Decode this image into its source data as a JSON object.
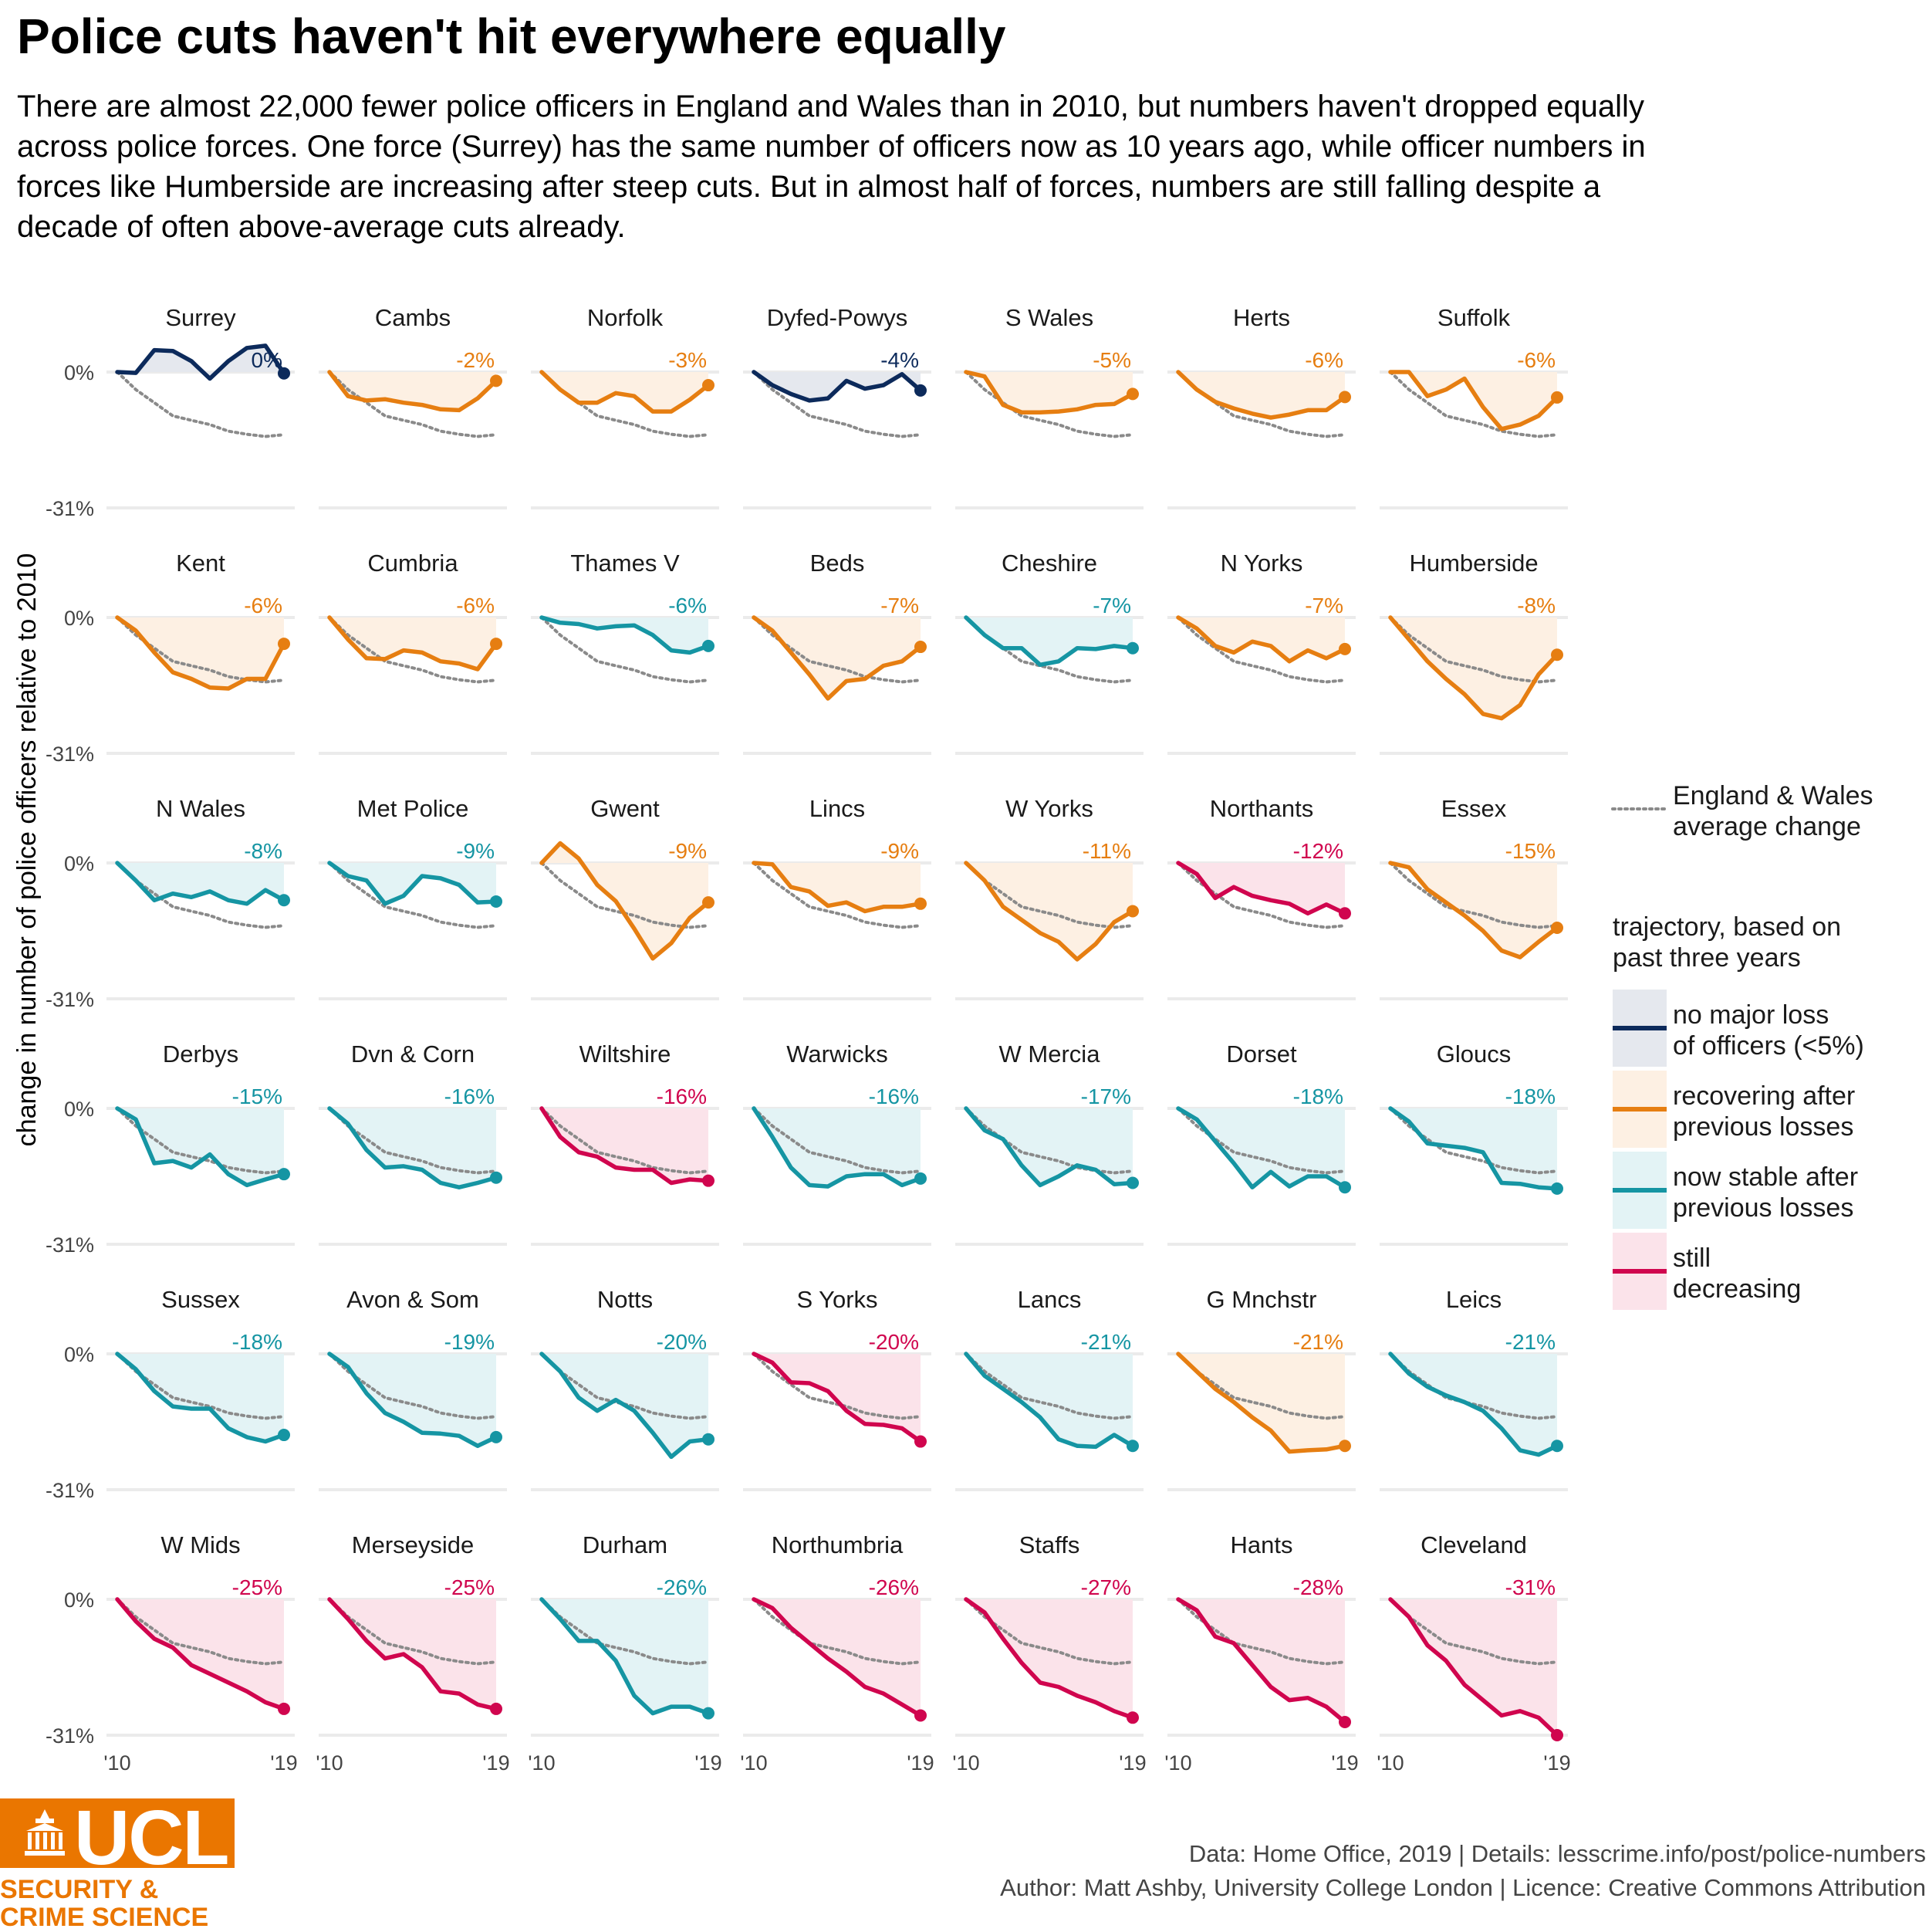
{
  "title": "Police cuts haven't hit everywhere equally",
  "subtitle": "There are almost 22,000 fewer police officers in England and Wales than in 2010, but numbers haven't dropped equally across police forces. One force (Surrey) has the same number of officers now as 10 years ago, while officer numbers in forces like Humberside are increasing after steep cuts. But in almost half of forces, numbers are still falling despite a decade of often above-average cuts already.",
  "caption": {
    "line1": "Data: Home Office, 2019 |  Details: lesscrime.info/post/police-numbers",
    "line2": "Author: Matt Ashby, University College London |  Licence: Creative Commons Attribution"
  },
  "logo": {
    "letters": "UCL",
    "tagline": "SECURITY &\nCRIME SCIENCE"
  },
  "legend": {
    "average_label": [
      "England & Wales",
      "average change"
    ],
    "trajectory_title": [
      "trajectory, based on",
      "past three years"
    ],
    "items": [
      {
        "key": "nochange",
        "label": [
          "no major loss",
          "of officers (<5%)"
        ]
      },
      {
        "key": "recovering",
        "label": [
          "recovering after",
          "previous losses"
        ]
      },
      {
        "key": "stable",
        "label": [
          "now stable after",
          "previous losses"
        ]
      },
      {
        "key": "decreasing",
        "label": [
          "still",
          "decreasing"
        ]
      }
    ]
  },
  "colors": {
    "nochange": {
      "line": "#0c2a5b",
      "fill": "#e5e8ee"
    },
    "recovering": {
      "line": "#e67e11",
      "fill": "#fdf0e3"
    },
    "stable": {
      "line": "#1595a3",
      "fill": "#e3f3f5"
    },
    "decreasing": {
      "line": "#d0054e",
      "fill": "#fbe3ea"
    },
    "average": "#8a8a8a",
    "gridline": "#ebebeb"
  },
  "chart_data": {
    "type": "line",
    "layout": "small-multiples",
    "ylabel": "change in number of police officers relative to 2010",
    "x": [
      2010,
      2011,
      2012,
      2013,
      2014,
      2015,
      2016,
      2017,
      2018,
      2019
    ],
    "x_tick_labels": [
      "'10",
      "'19"
    ],
    "y_tick_labels": [
      "0%",
      "-31%"
    ],
    "ylim": [
      -0.31,
      0.02
    ],
    "average": [
      0,
      -0.04,
      -0.07,
      -0.1,
      -0.11,
      -0.12,
      -0.135,
      -0.142,
      -0.147,
      -0.143
    ],
    "panels": [
      {
        "name": "Surrey",
        "label": "0%",
        "trajectory": "nochange",
        "values": [
          0,
          -0.002,
          0.05,
          0.048,
          0.025,
          -0.015,
          0.025,
          0.055,
          0.06,
          -0.003
        ]
      },
      {
        "name": "Cambs",
        "label": "-2%",
        "trajectory": "recovering",
        "values": [
          0,
          -0.055,
          -0.065,
          -0.062,
          -0.07,
          -0.075,
          -0.085,
          -0.087,
          -0.06,
          -0.02
        ]
      },
      {
        "name": "Norfolk",
        "label": "-3%",
        "trajectory": "recovering",
        "values": [
          0,
          -0.04,
          -0.07,
          -0.07,
          -0.048,
          -0.055,
          -0.09,
          -0.09,
          -0.063,
          -0.03
        ]
      },
      {
        "name": "Dyfed-Powys",
        "label": "-4%",
        "trajectory": "nochange",
        "values": [
          0,
          -0.03,
          -0.05,
          -0.065,
          -0.06,
          -0.02,
          -0.038,
          -0.03,
          -0.005,
          -0.042
        ]
      },
      {
        "name": "S Wales",
        "label": "-5%",
        "trajectory": "recovering",
        "values": [
          0,
          -0.01,
          -0.075,
          -0.092,
          -0.092,
          -0.09,
          -0.085,
          -0.075,
          -0.073,
          -0.05
        ]
      },
      {
        "name": "Herts",
        "label": "-6%",
        "trajectory": "recovering",
        "values": [
          0,
          -0.04,
          -0.068,
          -0.083,
          -0.095,
          -0.104,
          -0.097,
          -0.087,
          -0.087,
          -0.057
        ]
      },
      {
        "name": "Suffolk",
        "label": "-6%",
        "trajectory": "recovering",
        "values": [
          0,
          0,
          -0.055,
          -0.04,
          -0.015,
          -0.08,
          -0.13,
          -0.12,
          -0.1,
          -0.058
        ]
      },
      {
        "name": "Kent",
        "label": "-6%",
        "trajectory": "recovering",
        "values": [
          0,
          -0.03,
          -0.08,
          -0.125,
          -0.14,
          -0.16,
          -0.162,
          -0.14,
          -0.14,
          -0.06
        ]
      },
      {
        "name": "Cumbria",
        "label": "-6%",
        "trajectory": "recovering",
        "values": [
          0,
          -0.05,
          -0.093,
          -0.095,
          -0.075,
          -0.08,
          -0.1,
          -0.105,
          -0.118,
          -0.06
        ]
      },
      {
        "name": "Thames V",
        "label": "-6%",
        "trajectory": "stable",
        "values": [
          0,
          -0.012,
          -0.015,
          -0.025,
          -0.02,
          -0.018,
          -0.04,
          -0.075,
          -0.08,
          -0.065
        ]
      },
      {
        "name": "Beds",
        "label": "-7%",
        "trajectory": "recovering",
        "values": [
          0,
          -0.03,
          -0.08,
          -0.13,
          -0.185,
          -0.145,
          -0.14,
          -0.11,
          -0.1,
          -0.067
        ]
      },
      {
        "name": "Cheshire",
        "label": "-7%",
        "trajectory": "stable",
        "values": [
          0,
          -0.04,
          -0.07,
          -0.07,
          -0.108,
          -0.1,
          -0.07,
          -0.072,
          -0.065,
          -0.07
        ]
      },
      {
        "name": "N Yorks",
        "label": "-7%",
        "trajectory": "recovering",
        "values": [
          0,
          -0.025,
          -0.065,
          -0.08,
          -0.055,
          -0.065,
          -0.1,
          -0.075,
          -0.093,
          -0.072
        ]
      },
      {
        "name": "Humberside",
        "label": "-8%",
        "trajectory": "recovering",
        "values": [
          0,
          -0.05,
          -0.1,
          -0.14,
          -0.175,
          -0.22,
          -0.23,
          -0.2,
          -0.13,
          -0.085
        ]
      },
      {
        "name": "N Wales",
        "label": "-8%",
        "trajectory": "stable",
        "values": [
          0,
          -0.04,
          -0.085,
          -0.07,
          -0.078,
          -0.065,
          -0.085,
          -0.093,
          -0.062,
          -0.085
        ]
      },
      {
        "name": "Met Police",
        "label": "-9%",
        "trajectory": "stable",
        "values": [
          0,
          -0.03,
          -0.04,
          -0.093,
          -0.075,
          -0.03,
          -0.035,
          -0.05,
          -0.09,
          -0.088
        ]
      },
      {
        "name": "Gwent",
        "label": "-9%",
        "trajectory": "recovering",
        "values": [
          0,
          0.045,
          0.01,
          -0.05,
          -0.087,
          -0.15,
          -0.218,
          -0.183,
          -0.125,
          -0.09
        ]
      },
      {
        "name": "Lincs",
        "label": "-9%",
        "trajectory": "recovering",
        "values": [
          0,
          -0.003,
          -0.055,
          -0.065,
          -0.098,
          -0.09,
          -0.11,
          -0.1,
          -0.1,
          -0.093
        ]
      },
      {
        "name": "W Yorks",
        "label": "-11%",
        "trajectory": "recovering",
        "values": [
          0,
          -0.04,
          -0.1,
          -0.13,
          -0.16,
          -0.18,
          -0.22,
          -0.185,
          -0.135,
          -0.11
        ]
      },
      {
        "name": "Northants",
        "label": "-12%",
        "trajectory": "decreasing",
        "values": [
          0,
          -0.025,
          -0.08,
          -0.055,
          -0.075,
          -0.085,
          -0.093,
          -0.115,
          -0.095,
          -0.115
        ]
      },
      {
        "name": "Essex",
        "label": "-15%",
        "trajectory": "recovering",
        "values": [
          0,
          -0.01,
          -0.06,
          -0.09,
          -0.12,
          -0.155,
          -0.2,
          -0.215,
          -0.18,
          -0.148
        ]
      },
      {
        "name": "Derbys",
        "label": "-15%",
        "trajectory": "stable",
        "values": [
          0,
          -0.025,
          -0.125,
          -0.12,
          -0.135,
          -0.105,
          -0.15,
          -0.175,
          -0.162,
          -0.15
        ]
      },
      {
        "name": "Dvn & Corn",
        "label": "-16%",
        "trajectory": "stable",
        "values": [
          0,
          -0.035,
          -0.095,
          -0.135,
          -0.132,
          -0.14,
          -0.17,
          -0.18,
          -0.17,
          -0.158
        ]
      },
      {
        "name": "Wiltshire",
        "label": "-16%",
        "trajectory": "decreasing",
        "values": [
          0,
          -0.065,
          -0.1,
          -0.11,
          -0.135,
          -0.14,
          -0.14,
          -0.17,
          -0.162,
          -0.165
        ]
      },
      {
        "name": "Warwicks",
        "label": "-16%",
        "trajectory": "stable",
        "values": [
          0,
          -0.065,
          -0.135,
          -0.175,
          -0.178,
          -0.155,
          -0.15,
          -0.15,
          -0.175,
          -0.16
        ]
      },
      {
        "name": "W Mercia",
        "label": "-17%",
        "trajectory": "stable",
        "values": [
          0,
          -0.05,
          -0.07,
          -0.13,
          -0.175,
          -0.155,
          -0.13,
          -0.14,
          -0.173,
          -0.17
        ]
      },
      {
        "name": "Dorset",
        "label": "-18%",
        "trajectory": "stable",
        "values": [
          0,
          -0.025,
          -0.075,
          -0.125,
          -0.18,
          -0.145,
          -0.178,
          -0.155,
          -0.155,
          -0.18
        ]
      },
      {
        "name": "Gloucs",
        "label": "-18%",
        "trajectory": "stable",
        "values": [
          0,
          -0.03,
          -0.08,
          -0.085,
          -0.09,
          -0.1,
          -0.17,
          -0.172,
          -0.18,
          -0.183
        ]
      },
      {
        "name": "Sussex",
        "label": "-18%",
        "trajectory": "stable",
        "values": [
          0,
          -0.035,
          -0.085,
          -0.12,
          -0.125,
          -0.125,
          -0.17,
          -0.19,
          -0.2,
          -0.185
        ]
      },
      {
        "name": "Avon & Som",
        "label": "-19%",
        "trajectory": "stable",
        "values": [
          0,
          -0.03,
          -0.09,
          -0.135,
          -0.155,
          -0.18,
          -0.182,
          -0.187,
          -0.21,
          -0.19
        ]
      },
      {
        "name": "Notts",
        "label": "-20%",
        "trajectory": "stable",
        "values": [
          0,
          -0.04,
          -0.1,
          -0.13,
          -0.105,
          -0.13,
          -0.18,
          -0.235,
          -0.2,
          -0.195
        ]
      },
      {
        "name": "S Yorks",
        "label": "-20%",
        "trajectory": "decreasing",
        "values": [
          0,
          -0.02,
          -0.065,
          -0.067,
          -0.085,
          -0.13,
          -0.16,
          -0.162,
          -0.17,
          -0.2
        ]
      },
      {
        "name": "Lancs",
        "label": "-21%",
        "trajectory": "stable",
        "values": [
          0,
          -0.05,
          -0.08,
          -0.11,
          -0.145,
          -0.195,
          -0.21,
          -0.212,
          -0.185,
          -0.21
        ]
      },
      {
        "name": "G Mnchstr",
        "label": "-21%",
        "trajectory": "recovering",
        "values": [
          0,
          -0.04,
          -0.08,
          -0.11,
          -0.145,
          -0.175,
          -0.223,
          -0.22,
          -0.218,
          -0.21
        ]
      },
      {
        "name": "Leics",
        "label": "-21%",
        "trajectory": "stable",
        "values": [
          0,
          -0.045,
          -0.075,
          -0.095,
          -0.11,
          -0.13,
          -0.17,
          -0.22,
          -0.23,
          -0.21
        ]
      },
      {
        "name": "W Mids",
        "label": "-25%",
        "trajectory": "decreasing",
        "values": [
          0,
          -0.05,
          -0.09,
          -0.11,
          -0.15,
          -0.17,
          -0.19,
          -0.21,
          -0.235,
          -0.25
        ]
      },
      {
        "name": "Merseyside",
        "label": "-25%",
        "trajectory": "decreasing",
        "values": [
          0,
          -0.045,
          -0.095,
          -0.135,
          -0.125,
          -0.155,
          -0.21,
          -0.215,
          -0.24,
          -0.25
        ]
      },
      {
        "name": "Durham",
        "label": "-26%",
        "trajectory": "stable",
        "values": [
          0,
          -0.045,
          -0.095,
          -0.095,
          -0.14,
          -0.22,
          -0.26,
          -0.245,
          -0.245,
          -0.26
        ]
      },
      {
        "name": "Northumbria",
        "label": "-26%",
        "trajectory": "decreasing",
        "values": [
          0,
          -0.02,
          -0.065,
          -0.1,
          -0.135,
          -0.165,
          -0.2,
          -0.215,
          -0.24,
          -0.265
        ]
      },
      {
        "name": "Staffs",
        "label": "-27%",
        "trajectory": "decreasing",
        "values": [
          0,
          -0.03,
          -0.09,
          -0.145,
          -0.19,
          -0.2,
          -0.22,
          -0.235,
          -0.255,
          -0.27
        ]
      },
      {
        "name": "Hants",
        "label": "-28%",
        "trajectory": "decreasing",
        "values": [
          0,
          -0.025,
          -0.085,
          -0.1,
          -0.15,
          -0.2,
          -0.23,
          -0.225,
          -0.245,
          -0.28
        ]
      },
      {
        "name": "Cleveland",
        "label": "-31%",
        "trajectory": "decreasing",
        "values": [
          0,
          -0.04,
          -0.105,
          -0.14,
          -0.195,
          -0.23,
          -0.265,
          -0.255,
          -0.27,
          -0.31
        ]
      }
    ]
  }
}
